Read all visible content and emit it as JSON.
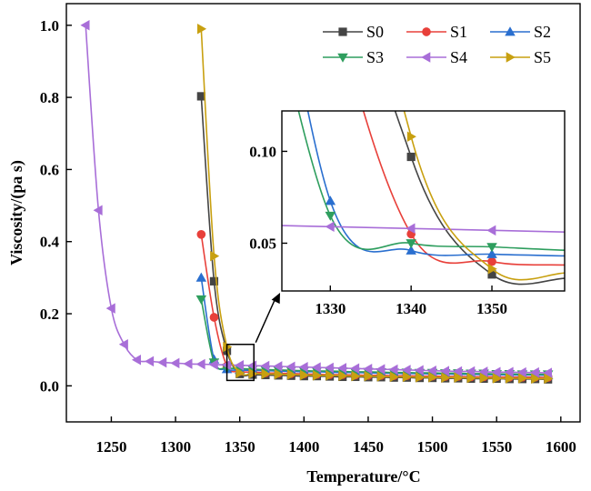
{
  "chart_data": {
    "type": "scatter",
    "xlabel": "Temperature/°C",
    "ylabel": "Viscosity/(pa s)",
    "xlim": [
      1215,
      1615
    ],
    "ylim": [
      -0.1,
      1.06
    ],
    "xticks": [
      1250,
      1300,
      1350,
      1400,
      1450,
      1500,
      1550,
      1600
    ],
    "yticks": [
      0.0,
      0.2,
      0.4,
      0.6,
      0.8,
      1.0
    ],
    "xtick_labels": [
      "1250",
      "1300",
      "1350",
      "1400",
      "1450",
      "1500",
      "1550",
      "1600"
    ],
    "ytick_labels": [
      "0.0",
      "0.2",
      "0.4",
      "0.6",
      "0.8",
      "1.0"
    ],
    "legend_position": "top-right",
    "series": [
      {
        "name": "S0",
        "color": "#444444",
        "marker": "square",
        "points": [
          [
            1320,
            0.803
          ],
          [
            1330,
            0.29
          ],
          [
            1340,
            0.097
          ],
          [
            1350,
            0.033
          ],
          [
            1360,
            0.031
          ],
          [
            1370,
            0.03
          ],
          [
            1380,
            0.029
          ],
          [
            1390,
            0.028
          ],
          [
            1400,
            0.027
          ],
          [
            1410,
            0.027
          ],
          [
            1420,
            0.026
          ],
          [
            1430,
            0.025
          ],
          [
            1440,
            0.025
          ],
          [
            1450,
            0.024
          ],
          [
            1460,
            0.024
          ],
          [
            1470,
            0.023
          ],
          [
            1480,
            0.023
          ],
          [
            1490,
            0.022
          ],
          [
            1500,
            0.022
          ],
          [
            1510,
            0.021
          ],
          [
            1520,
            0.021
          ],
          [
            1530,
            0.02
          ],
          [
            1540,
            0.02
          ],
          [
            1550,
            0.02
          ],
          [
            1560,
            0.019
          ],
          [
            1570,
            0.019
          ],
          [
            1580,
            0.019
          ],
          [
            1590,
            0.018
          ]
        ]
      },
      {
        "name": "S1",
        "color": "#e8403a",
        "marker": "circle",
        "points": [
          [
            1320,
            0.42
          ],
          [
            1330,
            0.19
          ],
          [
            1340,
            0.055
          ],
          [
            1350,
            0.04
          ],
          [
            1360,
            0.038
          ],
          [
            1370,
            0.036
          ],
          [
            1380,
            0.035
          ],
          [
            1390,
            0.034
          ],
          [
            1400,
            0.033
          ],
          [
            1410,
            0.032
          ],
          [
            1420,
            0.031
          ],
          [
            1430,
            0.031
          ],
          [
            1440,
            0.03
          ],
          [
            1450,
            0.029
          ],
          [
            1460,
            0.029
          ],
          [
            1470,
            0.028
          ],
          [
            1480,
            0.028
          ],
          [
            1490,
            0.027
          ],
          [
            1500,
            0.027
          ],
          [
            1510,
            0.026
          ],
          [
            1520,
            0.026
          ],
          [
            1530,
            0.025
          ],
          [
            1540,
            0.025
          ],
          [
            1550,
            0.025
          ],
          [
            1560,
            0.024
          ],
          [
            1570,
            0.024
          ],
          [
            1580,
            0.024
          ],
          [
            1590,
            0.023
          ]
        ]
      },
      {
        "name": "S2",
        "color": "#2a6fcf",
        "marker": "triangle-up",
        "points": [
          [
            1320,
            0.3
          ],
          [
            1330,
            0.073
          ],
          [
            1340,
            0.046
          ],
          [
            1350,
            0.044
          ],
          [
            1360,
            0.043
          ],
          [
            1370,
            0.042
          ],
          [
            1380,
            0.041
          ],
          [
            1390,
            0.04
          ],
          [
            1400,
            0.039
          ],
          [
            1410,
            0.039
          ],
          [
            1420,
            0.038
          ],
          [
            1430,
            0.037
          ],
          [
            1440,
            0.037
          ],
          [
            1450,
            0.036
          ],
          [
            1460,
            0.035
          ],
          [
            1470,
            0.035
          ],
          [
            1480,
            0.034
          ],
          [
            1490,
            0.034
          ],
          [
            1500,
            0.033
          ],
          [
            1510,
            0.033
          ],
          [
            1520,
            0.032
          ],
          [
            1530,
            0.032
          ],
          [
            1540,
            0.031
          ],
          [
            1550,
            0.031
          ],
          [
            1560,
            0.03
          ],
          [
            1570,
            0.03
          ],
          [
            1580,
            0.03
          ],
          [
            1590,
            0.029
          ]
        ]
      },
      {
        "name": "S3",
        "color": "#2e9e5e",
        "marker": "triangle-down",
        "points": [
          [
            1320,
            0.24
          ],
          [
            1330,
            0.065
          ],
          [
            1340,
            0.05
          ],
          [
            1350,
            0.048
          ],
          [
            1360,
            0.046
          ],
          [
            1370,
            0.045
          ],
          [
            1380,
            0.044
          ],
          [
            1390,
            0.043
          ],
          [
            1400,
            0.042
          ],
          [
            1410,
            0.041
          ],
          [
            1420,
            0.041
          ],
          [
            1430,
            0.04
          ],
          [
            1440,
            0.039
          ],
          [
            1450,
            0.039
          ],
          [
            1460,
            0.038
          ],
          [
            1470,
            0.037
          ],
          [
            1480,
            0.037
          ],
          [
            1490,
            0.036
          ],
          [
            1500,
            0.036
          ],
          [
            1510,
            0.035
          ],
          [
            1520,
            0.035
          ],
          [
            1530,
            0.034
          ],
          [
            1540,
            0.034
          ],
          [
            1550,
            0.033
          ],
          [
            1560,
            0.033
          ],
          [
            1570,
            0.032
          ],
          [
            1580,
            0.032
          ],
          [
            1590,
            0.032
          ]
        ]
      },
      {
        "name": "S4",
        "color": "#a86ed8",
        "marker": "triangle-left",
        "points": [
          [
            1230,
            1.0
          ],
          [
            1240,
            0.487
          ],
          [
            1250,
            0.215
          ],
          [
            1260,
            0.115
          ],
          [
            1270,
            0.072
          ],
          [
            1280,
            0.068
          ],
          [
            1290,
            0.065
          ],
          [
            1300,
            0.063
          ],
          [
            1310,
            0.061
          ],
          [
            1320,
            0.06
          ],
          [
            1330,
            0.059
          ],
          [
            1340,
            0.058
          ],
          [
            1350,
            0.057
          ],
          [
            1360,
            0.056
          ],
          [
            1370,
            0.055
          ],
          [
            1380,
            0.054
          ],
          [
            1390,
            0.053
          ],
          [
            1400,
            0.052
          ],
          [
            1410,
            0.051
          ],
          [
            1420,
            0.05
          ],
          [
            1430,
            0.049
          ],
          [
            1440,
            0.048
          ],
          [
            1450,
            0.047
          ],
          [
            1460,
            0.046
          ],
          [
            1470,
            0.045
          ],
          [
            1480,
            0.044
          ],
          [
            1490,
            0.043
          ],
          [
            1500,
            0.042
          ],
          [
            1510,
            0.041
          ],
          [
            1520,
            0.04
          ],
          [
            1530,
            0.04
          ],
          [
            1540,
            0.039
          ],
          [
            1550,
            0.038
          ],
          [
            1560,
            0.038
          ],
          [
            1570,
            0.037
          ],
          [
            1580,
            0.037
          ],
          [
            1590,
            0.036
          ]
        ]
      },
      {
        "name": "S5",
        "color": "#c8a010",
        "marker": "triangle-right",
        "points": [
          [
            1320,
            0.99
          ],
          [
            1330,
            0.36
          ],
          [
            1340,
            0.108
          ],
          [
            1350,
            0.036
          ],
          [
            1360,
            0.034
          ],
          [
            1370,
            0.033
          ],
          [
            1380,
            0.032
          ],
          [
            1390,
            0.031
          ],
          [
            1400,
            0.03
          ],
          [
            1410,
            0.029
          ],
          [
            1420,
            0.029
          ],
          [
            1430,
            0.028
          ],
          [
            1440,
            0.027
          ],
          [
            1450,
            0.027
          ],
          [
            1460,
            0.026
          ],
          [
            1470,
            0.025
          ],
          [
            1480,
            0.025
          ],
          [
            1490,
            0.024
          ],
          [
            1500,
            0.024
          ],
          [
            1510,
            0.023
          ],
          [
            1520,
            0.023
          ],
          [
            1530,
            0.022
          ],
          [
            1540,
            0.022
          ],
          [
            1550,
            0.021
          ],
          [
            1560,
            0.021
          ],
          [
            1570,
            0.021
          ],
          [
            1580,
            0.02
          ],
          [
            1590,
            0.02
          ]
        ]
      }
    ],
    "inset": {
      "xlim": [
        1324,
        1359
      ],
      "ylim": [
        0.024,
        0.122
      ],
      "xticks": [
        1330,
        1340,
        1350
      ],
      "yticks": [
        0.05,
        0.1
      ],
      "xtick_labels": [
        "1330",
        "1340",
        "1350"
      ],
      "ytick_labels": [
        "0.05",
        "0.10"
      ],
      "zoom_region": {
        "x": [
          1340,
          1361
        ],
        "y": [
          0.015,
          0.115
        ]
      }
    }
  }
}
